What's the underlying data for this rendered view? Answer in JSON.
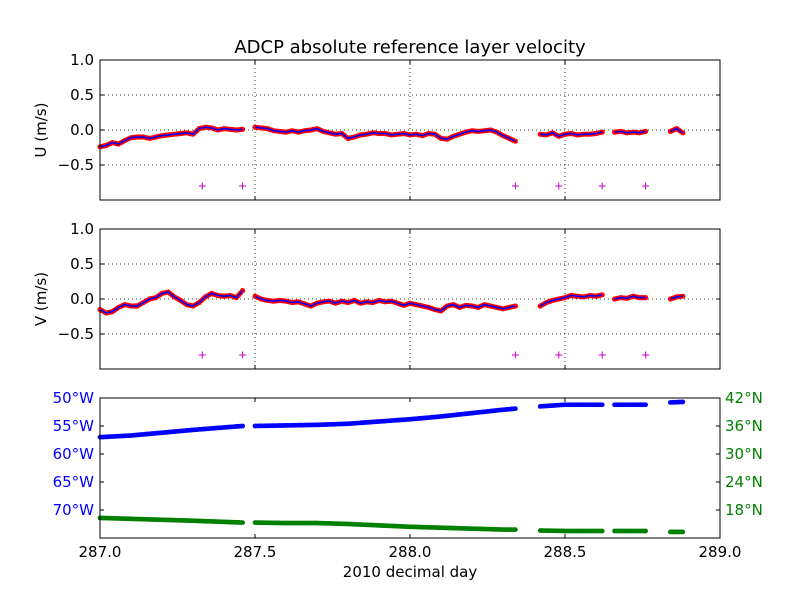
{
  "colors": {
    "u_v_points": "#ff0000",
    "u_v_line": "#0000ff",
    "markers": "#cc00cc",
    "lon": "#0000ff",
    "lat": "#008000",
    "grid": "#000000"
  },
  "chart_data": [
    {
      "type": "scatter",
      "panel": "u",
      "title": "ADCP absolute reference layer velocity",
      "ylabel": "U (m/s)",
      "xlabel": "",
      "xlim": [
        287.0,
        289.0
      ],
      "ylim": [
        -1.0,
        1.0
      ],
      "xticks": [
        287.0,
        287.5,
        288.0,
        288.5,
        289.0
      ],
      "yticks": [
        -0.5,
        0.0,
        0.5,
        1.0
      ],
      "ytick_labels": [
        "−0.5",
        "0.0",
        "0.5",
        "1.0"
      ],
      "grid": true,
      "segments": [
        {
          "x": [
            287.0,
            287.02,
            287.04,
            287.06,
            287.08,
            287.1,
            287.12,
            287.14,
            287.16,
            287.18,
            287.2,
            287.22,
            287.24,
            287.26,
            287.28,
            287.3,
            287.32,
            287.34,
            287.36,
            287.38,
            287.4,
            287.42,
            287.44,
            287.46
          ],
          "y": [
            -0.24,
            -0.22,
            -0.18,
            -0.2,
            -0.15,
            -0.11,
            -0.1,
            -0.1,
            -0.12,
            -0.1,
            -0.08,
            -0.07,
            -0.06,
            -0.05,
            -0.04,
            -0.06,
            0.02,
            0.04,
            0.03,
            0.0,
            0.02,
            0.01,
            0.0,
            0.01
          ]
        },
        {
          "x": [
            287.5,
            287.52,
            287.54,
            287.56,
            287.58,
            287.6,
            287.62,
            287.64,
            287.66,
            287.68,
            287.7,
            287.72,
            287.74,
            287.76,
            287.78,
            287.8,
            287.82,
            287.84,
            287.86,
            287.88,
            287.9,
            287.92,
            287.94,
            287.96,
            287.98,
            288.0,
            288.02,
            288.04,
            288.06,
            288.08,
            288.1,
            288.12,
            288.14,
            288.16,
            288.18,
            288.2,
            288.22,
            288.24,
            288.26,
            288.28,
            288.3,
            288.32,
            288.34
          ],
          "y": [
            0.04,
            0.03,
            0.02,
            -0.01,
            -0.02,
            -0.03,
            -0.01,
            -0.03,
            -0.01,
            0.0,
            0.02,
            -0.02,
            -0.04,
            -0.06,
            -0.05,
            -0.12,
            -0.1,
            -0.07,
            -0.06,
            -0.04,
            -0.05,
            -0.05,
            -0.07,
            -0.06,
            -0.05,
            -0.07,
            -0.06,
            -0.08,
            -0.05,
            -0.06,
            -0.12,
            -0.13,
            -0.09,
            -0.06,
            -0.03,
            -0.01,
            -0.02,
            -0.01,
            0.0,
            -0.03,
            -0.08,
            -0.12,
            -0.16
          ]
        },
        {
          "x": [
            288.42,
            288.44,
            288.46,
            288.48,
            288.5,
            288.52,
            288.54,
            288.56,
            288.58,
            288.6,
            288.62
          ],
          "y": [
            -0.06,
            -0.07,
            -0.04,
            -0.09,
            -0.06,
            -0.05,
            -0.07,
            -0.06,
            -0.06,
            -0.05,
            -0.03
          ]
        },
        {
          "x": [
            288.66,
            288.68,
            288.7,
            288.72,
            288.74,
            288.76
          ],
          "y": [
            -0.03,
            -0.02,
            -0.04,
            -0.03,
            -0.04,
            -0.02
          ]
        },
        {
          "x": [
            288.84,
            288.86,
            288.88
          ],
          "y": [
            -0.02,
            0.02,
            -0.04
          ]
        }
      ],
      "markers": {
        "x": [
          287.33,
          287.46,
          288.34,
          288.48,
          288.62,
          288.76
        ],
        "y": -0.8
      }
    },
    {
      "type": "scatter",
      "panel": "v",
      "title": "",
      "ylabel": "V (m/s)",
      "xlabel": "",
      "xlim": [
        287.0,
        289.0
      ],
      "ylim": [
        -1.0,
        1.0
      ],
      "xticks": [
        287.0,
        287.5,
        288.0,
        288.5,
        289.0
      ],
      "yticks": [
        -0.5,
        0.0,
        0.5,
        1.0
      ],
      "ytick_labels": [
        "−0.5",
        "0.0",
        "0.5",
        "1.0"
      ],
      "grid": true,
      "segments": [
        {
          "x": [
            287.0,
            287.02,
            287.04,
            287.06,
            287.08,
            287.1,
            287.12,
            287.14,
            287.16,
            287.18,
            287.2,
            287.22,
            287.24,
            287.26,
            287.28,
            287.3,
            287.32,
            287.34,
            287.36,
            287.38,
            287.4,
            287.42,
            287.44,
            287.46
          ],
          "y": [
            -0.15,
            -0.2,
            -0.18,
            -0.12,
            -0.08,
            -0.1,
            -0.1,
            -0.05,
            0.0,
            0.02,
            0.08,
            0.1,
            0.03,
            -0.02,
            -0.08,
            -0.1,
            -0.05,
            0.03,
            0.08,
            0.05,
            0.04,
            0.05,
            0.02,
            0.12
          ]
        },
        {
          "x": [
            287.5,
            287.52,
            287.54,
            287.56,
            287.58,
            287.6,
            287.62,
            287.64,
            287.66,
            287.68,
            287.7,
            287.72,
            287.74,
            287.76,
            287.78,
            287.8,
            287.82,
            287.84,
            287.86,
            287.88,
            287.9,
            287.92,
            287.94,
            287.96,
            287.98,
            288.0,
            288.02,
            288.04,
            288.06,
            288.08,
            288.1,
            288.12,
            288.14,
            288.16,
            288.18,
            288.2,
            288.22,
            288.24,
            288.26,
            288.28,
            288.3,
            288.32,
            288.34
          ],
          "y": [
            0.04,
            0.0,
            -0.02,
            -0.03,
            -0.02,
            -0.03,
            -0.05,
            -0.04,
            -0.07,
            -0.1,
            -0.06,
            -0.04,
            -0.03,
            -0.06,
            -0.03,
            -0.05,
            -0.02,
            -0.06,
            -0.04,
            -0.05,
            -0.02,
            -0.04,
            -0.03,
            -0.06,
            -0.09,
            -0.06,
            -0.08,
            -0.1,
            -0.12,
            -0.15,
            -0.17,
            -0.1,
            -0.08,
            -0.12,
            -0.09,
            -0.1,
            -0.12,
            -0.08,
            -0.1,
            -0.12,
            -0.14,
            -0.12,
            -0.1
          ]
        },
        {
          "x": [
            288.42,
            288.44,
            288.46,
            288.48,
            288.5,
            288.52,
            288.54,
            288.56,
            288.58,
            288.6,
            288.62
          ],
          "y": [
            -0.1,
            -0.05,
            -0.02,
            0.0,
            0.02,
            0.05,
            0.04,
            0.03,
            0.05,
            0.04,
            0.06
          ]
        },
        {
          "x": [
            288.66,
            288.68,
            288.7,
            288.72,
            288.74,
            288.76
          ],
          "y": [
            0.0,
            0.02,
            0.01,
            0.04,
            0.02,
            0.02
          ]
        },
        {
          "x": [
            288.84,
            288.86,
            288.88
          ],
          "y": [
            0.0,
            0.03,
            0.04
          ]
        }
      ],
      "markers": {
        "x": [
          287.33,
          287.46,
          288.34,
          288.48,
          288.62,
          288.76
        ],
        "y": -0.8
      }
    },
    {
      "type": "scatter",
      "panel": "position",
      "title": "",
      "xlabel": "2010 decimal day",
      "xlim": [
        287.0,
        289.0
      ],
      "xticks": [
        287.0,
        287.5,
        288.0,
        288.5,
        289.0
      ],
      "xtick_labels": [
        "287.0",
        "287.5",
        "288.0",
        "288.5",
        "289.0"
      ],
      "left_axis": {
        "ylim": [
          -75.0,
          -50.0
        ],
        "yticks": [
          -50,
          -55,
          -60,
          -65,
          -70
        ],
        "ytick_labels": [
          "50°W",
          "55°W",
          "60°W",
          "65°W",
          "70°W"
        ]
      },
      "right_axis": {
        "ylim": [
          12.0,
          42.0
        ],
        "yticks": [
          42,
          36,
          30,
          24,
          18
        ],
        "ytick_labels": [
          "42°N",
          "36°N",
          "30°N",
          "24°N",
          "18°N"
        ]
      },
      "grid": false,
      "series": [
        {
          "axis": "left",
          "segments": [
            {
              "x": [
                287.0,
                287.1,
                287.2,
                287.3,
                287.46
              ],
              "y": [
                -57.0,
                -56.7,
                -56.2,
                -55.7,
                -55.0
              ]
            },
            {
              "x": [
                287.5,
                287.6,
                287.7,
                287.8,
                287.9,
                288.0,
                288.1,
                288.2,
                288.3,
                288.34
              ],
              "y": [
                -55.0,
                -54.9,
                -54.8,
                -54.6,
                -54.2,
                -53.8,
                -53.3,
                -52.7,
                -52.1,
                -51.9
              ]
            },
            {
              "x": [
                288.42,
                288.5,
                288.62
              ],
              "y": [
                -51.5,
                -51.2,
                -51.2
              ]
            },
            {
              "x": [
                288.66,
                288.76
              ],
              "y": [
                -51.2,
                -51.2
              ]
            },
            {
              "x": [
                288.84,
                288.88
              ],
              "y": [
                -50.8,
                -50.7
              ]
            }
          ]
        },
        {
          "axis": "right",
          "segments": [
            {
              "x": [
                287.0,
                287.1,
                287.2,
                287.3,
                287.46
              ],
              "y": [
                16.3,
                16.1,
                15.9,
                15.7,
                15.3
              ]
            },
            {
              "x": [
                287.5,
                287.6,
                287.7,
                287.8,
                287.9,
                288.0,
                288.1,
                288.2,
                288.3,
                288.34
              ],
              "y": [
                15.3,
                15.2,
                15.2,
                15.0,
                14.7,
                14.4,
                14.2,
                14.0,
                13.8,
                13.8
              ]
            },
            {
              "x": [
                288.42,
                288.5,
                288.62
              ],
              "y": [
                13.6,
                13.5,
                13.5
              ]
            },
            {
              "x": [
                288.66,
                288.76
              ],
              "y": [
                13.5,
                13.5
              ]
            },
            {
              "x": [
                288.84,
                288.88
              ],
              "y": [
                13.3,
                13.3
              ]
            }
          ]
        }
      ]
    }
  ]
}
